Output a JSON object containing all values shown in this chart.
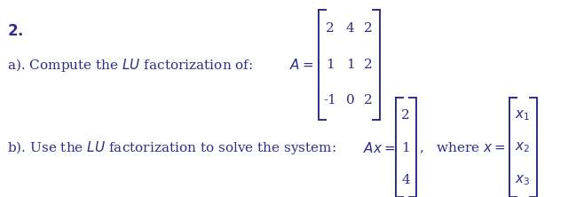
{
  "background_color": "#ffffff",
  "text_color": "#2e2e8b",
  "fig_width": 6.58,
  "fig_height": 2.22,
  "dpi": 100,
  "font_size": 11,
  "bold_font_size": 12
}
